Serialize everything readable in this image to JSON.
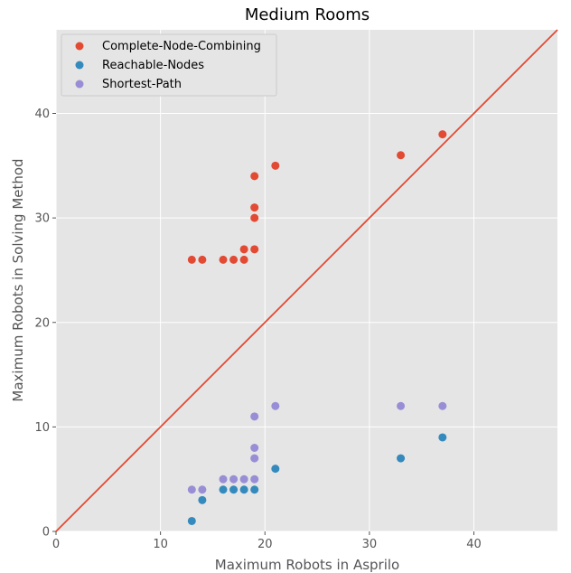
{
  "chart_data": {
    "type": "scatter",
    "title": "Medium Rooms",
    "xlabel": "Maximum Robots in Asprilo",
    "ylabel": "Maximum Robots in Solving Method",
    "xlim": [
      0,
      48
    ],
    "ylim": [
      0,
      48
    ],
    "xticks": [
      0,
      10,
      20,
      30,
      40
    ],
    "yticks": [
      0,
      10,
      20,
      30,
      40
    ],
    "grid": true,
    "legend_position": "top-left",
    "background_color": "#e5e5e5",
    "reference_line": {
      "from": [
        0,
        0
      ],
      "to": [
        48,
        48
      ],
      "color": "#e24a33"
    },
    "series": [
      {
        "name": "Complete-Node-Combining",
        "color": "#e24a33",
        "points": [
          [
            13,
            26
          ],
          [
            14,
            26
          ],
          [
            16,
            26
          ],
          [
            17,
            26
          ],
          [
            18,
            26
          ],
          [
            18,
            27
          ],
          [
            19,
            27
          ],
          [
            19,
            30
          ],
          [
            19,
            31
          ],
          [
            19,
            34
          ],
          [
            21,
            35
          ],
          [
            33,
            36
          ],
          [
            37,
            38
          ]
        ]
      },
      {
        "name": "Reachable-Nodes",
        "color": "#348abd",
        "points": [
          [
            13,
            1
          ],
          [
            14,
            3
          ],
          [
            16,
            4
          ],
          [
            17,
            4
          ],
          [
            18,
            4
          ],
          [
            19,
            4
          ],
          [
            21,
            6
          ],
          [
            33,
            7
          ],
          [
            37,
            9
          ]
        ]
      },
      {
        "name": "Shortest-Path",
        "color": "#988ed5",
        "points": [
          [
            13,
            4
          ],
          [
            14,
            4
          ],
          [
            16,
            5
          ],
          [
            17,
            5
          ],
          [
            18,
            5
          ],
          [
            19,
            5
          ],
          [
            19,
            7
          ],
          [
            19,
            8
          ],
          [
            19,
            11
          ],
          [
            21,
            12
          ],
          [
            33,
            12
          ],
          [
            37,
            12
          ]
        ]
      }
    ]
  }
}
